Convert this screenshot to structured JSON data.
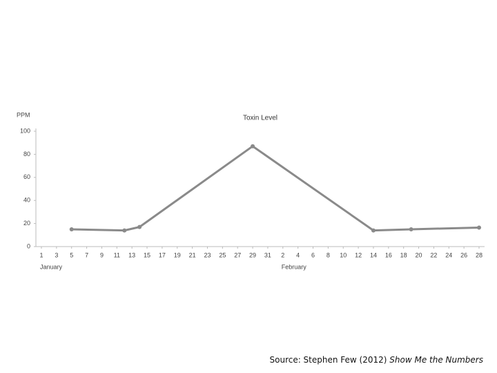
{
  "chart_data": {
    "type": "line",
    "title": "Toxin Level",
    "y_label": "PPM",
    "x": [
      "January 5",
      "January 12",
      "January 14",
      "January 29",
      "February 14",
      "February 19",
      "February 28"
    ],
    "series": [
      {
        "name": "Toxin Level",
        "color": "#8a8a8a",
        "values": [
          15,
          14,
          17,
          87,
          14,
          15,
          16.5
        ]
      }
    ],
    "months": [
      "January",
      "February"
    ],
    "xticks": [
      {
        "value": "January 1",
        "label": "1"
      },
      {
        "value": "January 3",
        "label": "3"
      },
      {
        "value": "January 5",
        "label": "5"
      },
      {
        "value": "January 7",
        "label": "7"
      },
      {
        "value": "January 9",
        "label": "9"
      },
      {
        "value": "January 11",
        "label": "11"
      },
      {
        "value": "January 13",
        "label": "13"
      },
      {
        "value": "January 15",
        "label": "15"
      },
      {
        "value": "January 17",
        "label": "17"
      },
      {
        "value": "January 19",
        "label": "19"
      },
      {
        "value": "January 21",
        "label": "21"
      },
      {
        "value": "January 23",
        "label": "23"
      },
      {
        "value": "January 25",
        "label": "25"
      },
      {
        "value": "January 27",
        "label": "27"
      },
      {
        "value": "January 29",
        "label": "29"
      },
      {
        "value": "January 31",
        "label": "31"
      },
      {
        "value": "February 2",
        "label": "2"
      },
      {
        "value": "February 4",
        "label": "4"
      },
      {
        "value": "February 6",
        "label": "6"
      },
      {
        "value": "February 8",
        "label": "8"
      },
      {
        "value": "February 10",
        "label": "10"
      },
      {
        "value": "February 12",
        "label": "12"
      },
      {
        "value": "February 14",
        "label": "14"
      },
      {
        "value": "February 16",
        "label": "16"
      },
      {
        "value": "February 18",
        "label": "18"
      },
      {
        "value": "February 20",
        "label": "20"
      },
      {
        "value": "February 22",
        "label": "22"
      },
      {
        "value": "February 24",
        "label": "24"
      },
      {
        "value": "February 26",
        "label": "26"
      },
      {
        "value": "February 28",
        "label": "28"
      }
    ],
    "ylim": [
      0,
      100
    ],
    "yticks": [
      0,
      20,
      40,
      60,
      80,
      100
    ],
    "source": {
      "text": "Source: Stephen Few (2012)",
      "book": "Show Me the Numbers"
    }
  }
}
